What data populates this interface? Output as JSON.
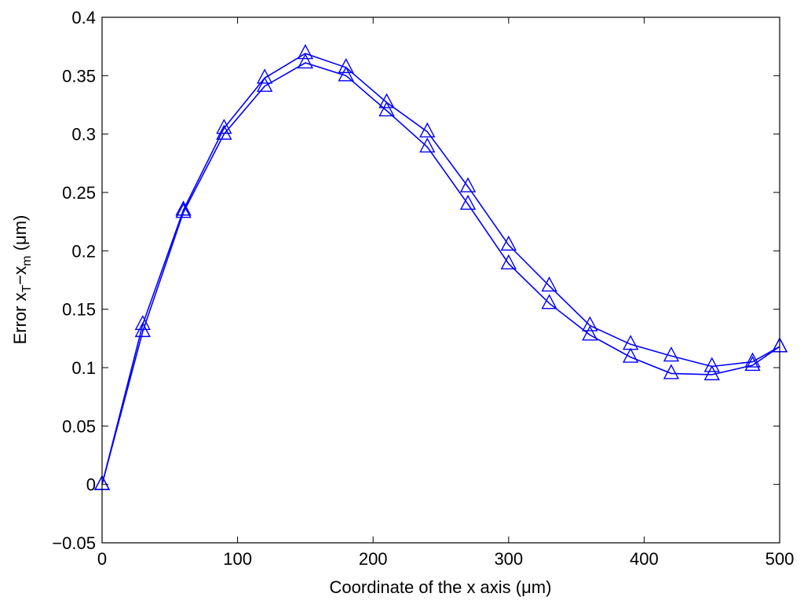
{
  "chart_data": {
    "type": "line",
    "xlabel": "Coordinate of the x axis (μm)",
    "ylabel": {
      "prefix": "Error x",
      "sub1": "T",
      "mid": "−x",
      "sub2": "m",
      "suffix": " (μm)"
    },
    "xlim": [
      0,
      500
    ],
    "ylim": [
      -0.05,
      0.4
    ],
    "xticks": [
      0,
      100,
      200,
      300,
      400,
      500
    ],
    "yticks": [
      -0.05,
      0,
      0.05,
      0.1,
      0.15,
      0.2,
      0.25,
      0.3,
      0.35,
      0.4
    ],
    "xtick_labels": [
      "0",
      "100",
      "200",
      "300",
      "400",
      "500"
    ],
    "ytick_labels": [
      "−0.05",
      "0",
      "0.05",
      "0.1",
      "0.15",
      "0.2",
      "0.25",
      "0.3",
      "0.35",
      "0.4"
    ],
    "grid": false,
    "color": "#0000ff",
    "marker": "triangle",
    "x": [
      0,
      30,
      60,
      90,
      120,
      150,
      180,
      210,
      240,
      270,
      300,
      330,
      360,
      390,
      420,
      450,
      480,
      500
    ],
    "series": [
      {
        "values": [
          0,
          0.137,
          0.235,
          0.305,
          0.348,
          0.369,
          0.357,
          0.327,
          0.302,
          0.255,
          0.205,
          0.17,
          0.136,
          0.12,
          0.11,
          0.101,
          0.105,
          0.118
        ]
      },
      {
        "values": [
          0,
          0.131,
          0.233,
          0.3,
          0.341,
          0.361,
          0.35,
          0.32,
          0.289,
          0.24,
          0.189,
          0.155,
          0.128,
          0.109,
          0.095,
          0.094,
          0.102,
          0.118
        ]
      }
    ]
  }
}
